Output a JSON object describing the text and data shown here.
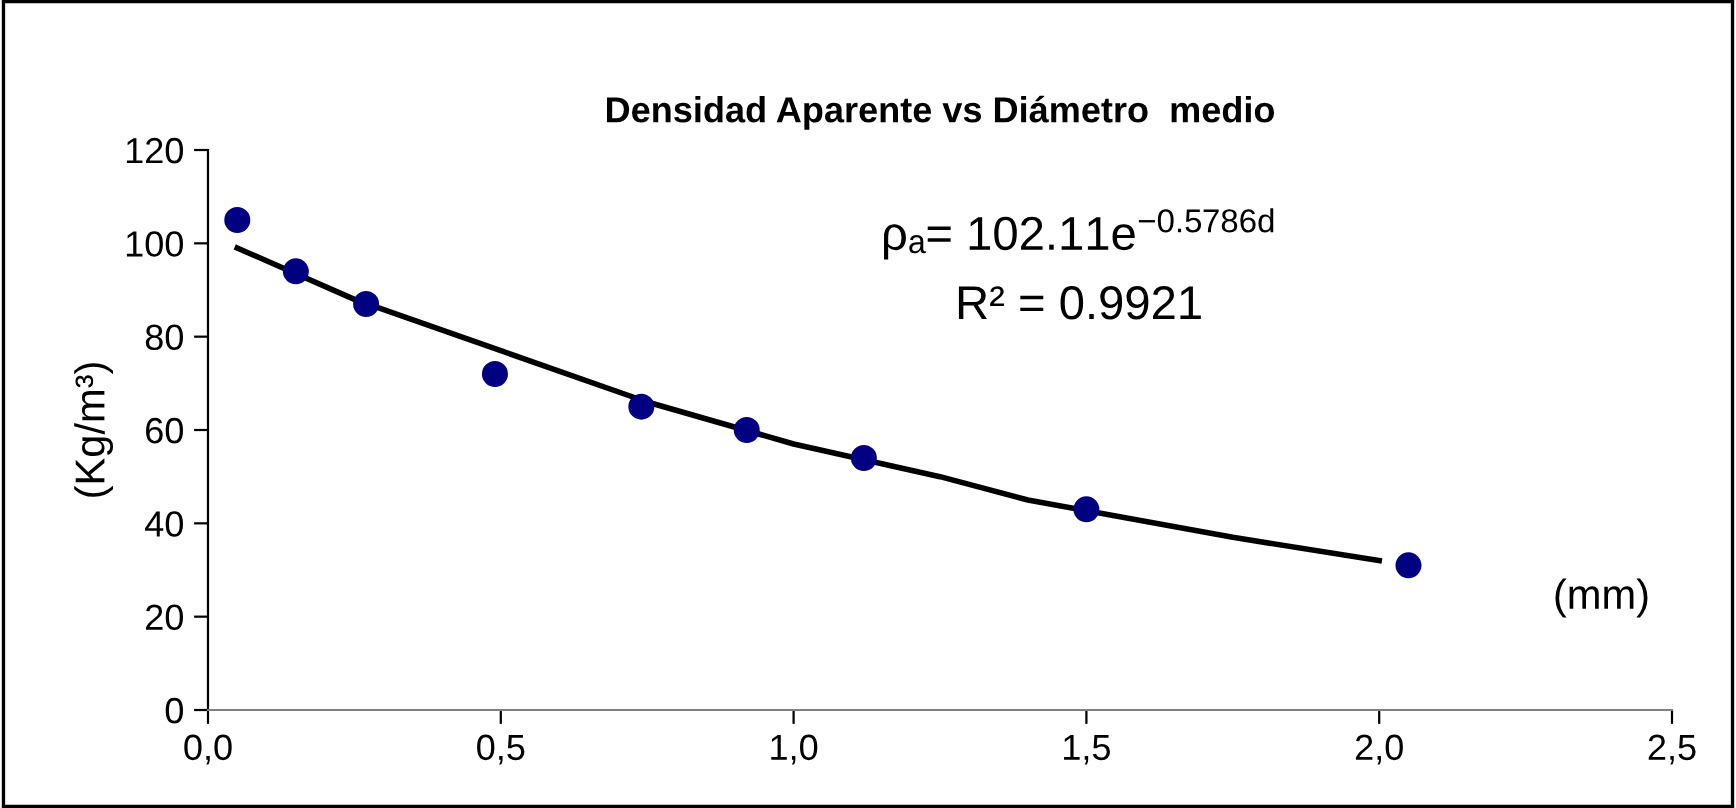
{
  "chart_data": {
    "type": "scatter",
    "title": "Densidad Aparente vs Diámetro  medio",
    "xlabel": "(mm)",
    "ylabel": "(Kg/m³)",
    "annotations": [
      "ρₐ= 102.11e$^{−0.5786d}$",
      "R² = 0.9921"
    ],
    "series": [
      {
        "marker": "circle",
        "color": "#000080",
        "x": [
          0.05,
          0.15,
          0.27,
          0.49,
          0.74,
          0.92,
          1.12,
          1.5,
          2.05
        ],
        "values": [
          105,
          94,
          87,
          72,
          65,
          60,
          54,
          43,
          31
        ]
      },
      {
        "type": "line",
        "marker": "none",
        "color": "#000000",
        "x": [
          0.05,
          0.25,
          0.5,
          0.75,
          1.0,
          1.25,
          1.4,
          1.75,
          2.0
        ],
        "values": [
          99,
          88,
          77,
          66,
          57,
          50,
          45,
          37,
          32
        ]
      }
    ],
    "xlim": [
      0,
      2.5
    ],
    "ylim": [
      0,
      120
    ],
    "xticks": [
      {
        "value": 0,
        "label": "0,0"
      },
      {
        "value": 0.5,
        "label": "0,5"
      },
      {
        "value": 1.0,
        "label": "1,0"
      },
      {
        "value": 1.5,
        "label": "1,5"
      },
      {
        "value": 2.0,
        "label": "2,0"
      },
      {
        "value": 2.5,
        "label": "2,5"
      }
    ],
    "yticks": [
      0,
      20,
      40,
      60,
      80,
      100,
      120
    ],
    "grid": false,
    "legend": false
  }
}
